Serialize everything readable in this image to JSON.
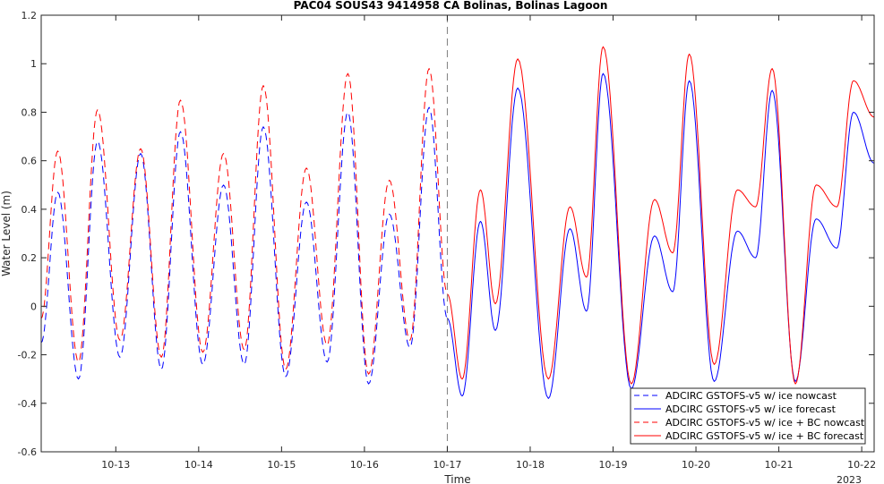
{
  "chart_data": {
    "type": "line",
    "title": "PAC04 SOUS43 9414958 CA Bolinas, Bolinas Lagoon",
    "xlabel": "Time",
    "ylabel": "Water Level (m)",
    "x_units": "days since 2023-10-12 00:00",
    "xlim": [
      0.1,
      10.15
    ],
    "ylim": [
      -0.6,
      1.2
    ],
    "yticks": [
      -0.6,
      -0.4,
      -0.2,
      0,
      0.2,
      0.4,
      0.6,
      0.8,
      1,
      1.2
    ],
    "ytick_labels": [
      "-0.6",
      "-0.4",
      "-0.2",
      "0",
      "0.2",
      "0.4",
      "0.6",
      "0.8",
      "1",
      "1.2"
    ],
    "xticks": [
      1,
      2,
      3,
      4,
      5,
      6,
      7,
      8,
      9,
      10
    ],
    "xtick_labels": [
      "10-13",
      "10-14",
      "10-15",
      "10-16",
      "10-17",
      "10-18",
      "10-19",
      "10-20",
      "10-21",
      "10-22"
    ],
    "xaxis_year_label": "2023",
    "nowcast_forecast_divider_x": 5,
    "grid": false,
    "legend_position": "lower-right",
    "series": [
      {
        "name": "ADCIRC GSTOFS-v5 w/ ice nowcast",
        "color": "#0000ff",
        "style": "dashed",
        "x": [
          0.1,
          0.3,
          0.55,
          0.78,
          1.05,
          1.3,
          1.55,
          1.78,
          2.05,
          2.3,
          2.55,
          2.78,
          3.05,
          3.3,
          3.55,
          3.8,
          4.05,
          4.3,
          4.55,
          4.78,
          5.0
        ],
        "y": [
          -0.15,
          0.47,
          -0.3,
          0.68,
          -0.21,
          0.63,
          -0.26,
          0.72,
          -0.24,
          0.5,
          -0.24,
          0.74,
          -0.29,
          0.43,
          -0.23,
          0.8,
          -0.32,
          0.38,
          -0.17,
          0.82,
          -0.05
        ]
      },
      {
        "name": "ADCIRC GSTOFS-v5 w/ ice forecast",
        "color": "#0000ff",
        "style": "solid",
        "x": [
          5.0,
          5.18,
          5.4,
          5.58,
          5.85,
          6.22,
          6.48,
          6.68,
          6.88,
          7.22,
          7.5,
          7.72,
          7.92,
          8.22,
          8.5,
          8.72,
          8.92,
          9.2,
          9.45,
          9.7,
          9.9,
          10.15
        ],
        "y": [
          -0.05,
          -0.37,
          0.35,
          -0.1,
          0.9,
          -0.38,
          0.32,
          -0.02,
          0.96,
          -0.34,
          0.29,
          0.06,
          0.93,
          -0.31,
          0.31,
          0.2,
          0.89,
          -0.31,
          0.36,
          0.24,
          0.8,
          0.59
        ]
      },
      {
        "name": "ADCIRC GSTOFS-v5 w/ ice + BC nowcast",
        "color": "#ff0000",
        "style": "dashed",
        "x": [
          0.1,
          0.3,
          0.55,
          0.78,
          1.05,
          1.3,
          1.55,
          1.78,
          2.05,
          2.3,
          2.55,
          2.78,
          3.05,
          3.3,
          3.55,
          3.8,
          4.05,
          4.3,
          4.55,
          4.78,
          5.0
        ],
        "y": [
          -0.05,
          0.64,
          -0.23,
          0.81,
          -0.14,
          0.65,
          -0.21,
          0.85,
          -0.19,
          0.63,
          -0.18,
          0.91,
          -0.26,
          0.57,
          -0.16,
          0.96,
          -0.28,
          0.52,
          -0.14,
          0.98,
          0.05
        ]
      },
      {
        "name": "ADCIRC GSTOFS-v5 w/ ice + BC forecast",
        "color": "#ff0000",
        "style": "solid",
        "x": [
          5.0,
          5.18,
          5.4,
          5.58,
          5.85,
          6.22,
          6.48,
          6.68,
          6.88,
          7.22,
          7.5,
          7.72,
          7.92,
          8.22,
          8.5,
          8.72,
          8.92,
          9.2,
          9.45,
          9.7,
          9.9,
          10.15
        ],
        "y": [
          0.05,
          -0.3,
          0.48,
          0.01,
          1.02,
          -0.3,
          0.41,
          0.12,
          1.07,
          -0.32,
          0.44,
          0.22,
          1.04,
          -0.24,
          0.48,
          0.41,
          0.98,
          -0.32,
          0.5,
          0.41,
          0.93,
          0.78
        ]
      }
    ]
  }
}
